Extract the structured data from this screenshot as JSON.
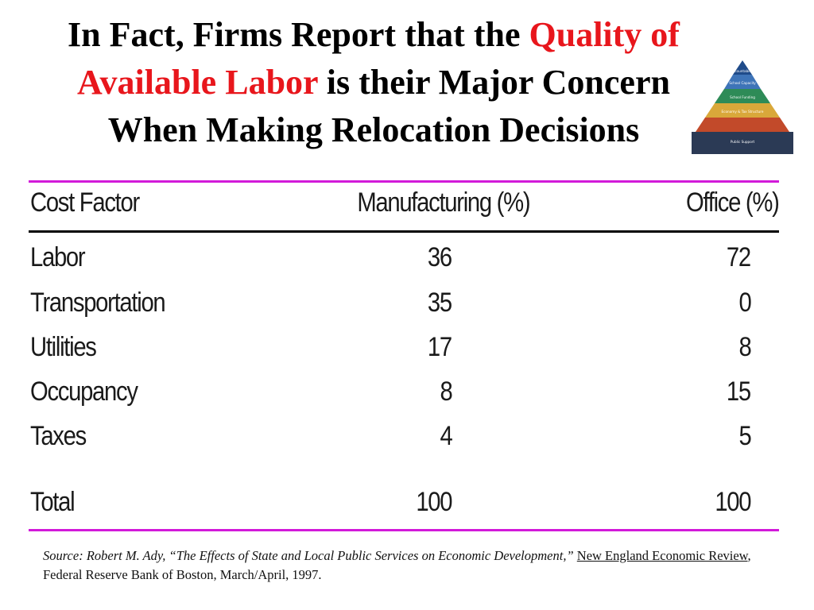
{
  "title": {
    "line1_part1": "In Fact, Firms Report that the ",
    "line1_part2": "Quality of",
    "line2_part1": "Available Labor",
    "line2_part2": " is their Major Concern",
    "line3": "When Making Relocation Decisions"
  },
  "pyramid": {
    "levels": [
      "Accountability",
      "School Capacity",
      "School Funding",
      "Economy & Tax Structure",
      "Public Support"
    ],
    "colors": [
      "#1f4b8a",
      "#3e74b8",
      "#2e8b57",
      "#c24a2a",
      "#2b3a55"
    ]
  },
  "table": {
    "headers": [
      "Cost Factor",
      "Manufacturing (%)",
      "Office (%)"
    ],
    "rows": [
      [
        "Labor",
        "36",
        "72"
      ],
      [
        "Transportation",
        "35",
        "0"
      ],
      [
        "Utilities",
        "17",
        "8"
      ],
      [
        "Occupancy",
        "8",
        "15"
      ],
      [
        "Taxes",
        "4",
        "5"
      ]
    ],
    "total": [
      "Total",
      "100",
      "100"
    ]
  },
  "source": {
    "italic": "Source: Robert M. Ady, “The Effects of State and Local Public Services on Economic Development,” ",
    "journal": "New England Economic Review",
    "rest": ", Federal Reserve Bank of Boston, March/April, 1997."
  }
}
